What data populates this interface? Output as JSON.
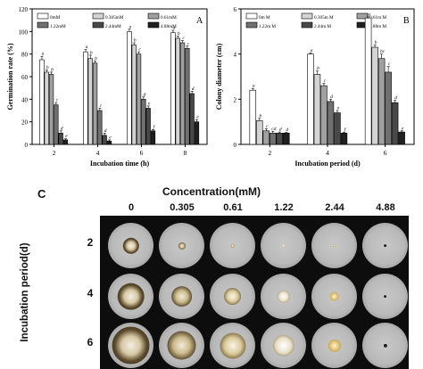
{
  "chart_data": [
    {
      "panel": "A",
      "type": "bar",
      "xlabel": "Incubation time (h)",
      "ylabel": "Germination rate (%)",
      "ylim": [
        0,
        120
      ],
      "yticks": [
        0,
        20,
        40,
        60,
        80,
        100,
        120
      ],
      "categories": [
        "2",
        "4",
        "6",
        "8"
      ],
      "legend_position": "top",
      "series": [
        {
          "name": "0mM",
          "color": "#ffffff",
          "values": [
            75,
            82,
            100,
            99
          ],
          "errors": [
            3,
            2,
            2,
            2
          ],
          "letters": [
            "a",
            "a",
            "a",
            "a"
          ]
        },
        {
          "name": "0.305mM",
          "color": "#d4d4d4",
          "values": [
            64,
            76,
            88,
            94
          ],
          "errors": [
            2,
            3,
            2,
            2
          ],
          "letters": [
            "b",
            "b",
            "b",
            "b"
          ]
        },
        {
          "name": "0.61mM",
          "color": "#a0a0a0",
          "values": [
            62,
            72,
            80,
            90
          ],
          "errors": [
            2,
            2,
            2,
            2
          ],
          "letters": [
            "b",
            "b",
            "c",
            "c"
          ]
        },
        {
          "name": "1.22mM",
          "color": "#707070",
          "values": [
            35,
            30,
            40,
            85
          ],
          "errors": [
            2,
            2,
            2,
            2
          ],
          "letters": [
            "c",
            "c",
            "d",
            "c"
          ]
        },
        {
          "name": "2.44mM",
          "color": "#484848",
          "values": [
            10,
            8,
            32,
            45
          ],
          "errors": [
            2,
            2,
            2,
            2
          ],
          "letters": [
            "d",
            "d",
            "e",
            "d"
          ]
        },
        {
          "name": "4.88mM",
          "color": "#202020",
          "values": [
            4,
            3,
            12,
            20
          ],
          "errors": [
            1,
            1,
            1,
            2
          ],
          "letters": [
            "e",
            "e",
            "f",
            "e"
          ]
        }
      ]
    },
    {
      "panel": "B",
      "type": "bar",
      "xlabel": "Incubation period (d)",
      "ylabel": "Colony diameter (cm)",
      "ylim": [
        0,
        6
      ],
      "yticks": [
        0,
        2,
        4,
        6
      ],
      "categories": [
        "2",
        "4",
        "6"
      ],
      "legend_position": "top",
      "series": [
        {
          "name": "0m M",
          "color": "#ffffff",
          "values": [
            2.4,
            4.0,
            5.6
          ],
          "errors": [
            0.08,
            0.05,
            0.05
          ],
          "letters": [
            "a",
            "a",
            "a"
          ]
        },
        {
          "name": "0.305m M",
          "color": "#d4d4d4",
          "values": [
            1.05,
            3.1,
            4.3
          ],
          "errors": [
            0.1,
            0.15,
            0.1
          ],
          "letters": [
            "b",
            "b",
            "b"
          ]
        },
        {
          "name": "0.61m M",
          "color": "#a0a0a0",
          "values": [
            0.6,
            2.6,
            3.8
          ],
          "errors": [
            0.1,
            0.1,
            0.2
          ],
          "letters": [
            "c",
            "c",
            "bc"
          ]
        },
        {
          "name": "1.22m M",
          "color": "#707070",
          "values": [
            0.5,
            1.9,
            3.2
          ],
          "errors": [
            0.08,
            0.1,
            0.25
          ],
          "letters": [
            "cd",
            "d",
            "c"
          ]
        },
        {
          "name": "2.44m M",
          "color": "#484848",
          "values": [
            0.5,
            1.4,
            1.85
          ],
          "errors": [
            0.05,
            0.1,
            0.1
          ],
          "letters": [
            "d",
            "e",
            "d"
          ]
        },
        {
          "name": "4.88m M",
          "color": "#202020",
          "values": [
            0.5,
            0.5,
            0.55
          ],
          "errors": [
            0.03,
            0.03,
            0.05
          ],
          "letters": [
            "d",
            "f",
            "e"
          ]
        }
      ]
    }
  ],
  "panelA": {
    "letter": "A"
  },
  "panelB": {
    "letter": "B"
  },
  "panelC": {
    "letter": "C",
    "title": "Concentration(mM)",
    "ylabel": "Incubation period(d)",
    "concentrations": [
      "0",
      "0.305",
      "0.61",
      "1.22",
      "2.44",
      "4.88"
    ],
    "periods": [
      "2",
      "4",
      "6"
    ]
  }
}
